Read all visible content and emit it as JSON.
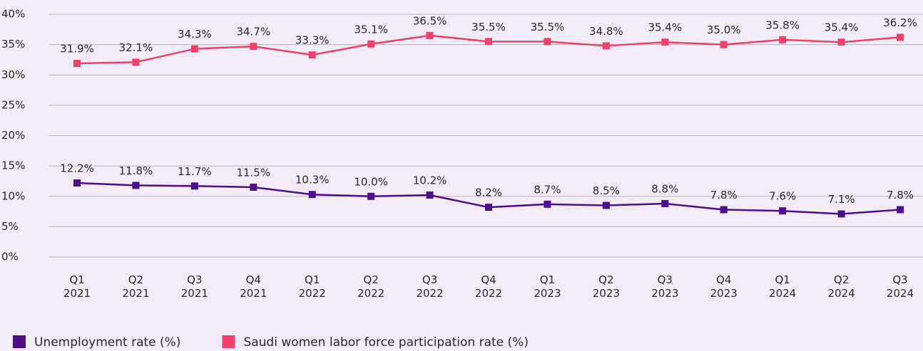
{
  "chart_data": {
    "type": "line",
    "categories": [
      "Q1 2021",
      "Q2 2021",
      "Q3 2021",
      "Q4 2021",
      "Q1 2022",
      "Q2 2022",
      "Q3 2022",
      "Q4 2022",
      "Q1 2023",
      "Q2 2023",
      "Q3 2023",
      "Q4 2023",
      "Q1 2024",
      "Q2 2024",
      "Q3 2024"
    ],
    "series": [
      {
        "name": "Unemployment rate (%)",
        "color": "#4b0f8c",
        "values": [
          12.2,
          11.8,
          11.7,
          11.5,
          10.3,
          10.0,
          10.2,
          8.2,
          8.7,
          8.5,
          8.8,
          7.8,
          7.6,
          7.1,
          7.8
        ],
        "value_labels": [
          "12.2%",
          "11.8%",
          "11.7%",
          "11.5%",
          "10.3%",
          "10.0%",
          "10.2%",
          "8.2%",
          "8.7%",
          "8.5%",
          "8.8%",
          "7.8%",
          "7.6%",
          "7.1%",
          "7.8%"
        ]
      },
      {
        "name": "Saudi women labor force participation rate (%)",
        "color": "#f0416a",
        "values": [
          31.9,
          32.1,
          34.3,
          34.7,
          33.3,
          35.1,
          36.5,
          35.5,
          35.5,
          34.8,
          35.4,
          35.0,
          35.8,
          35.4,
          36.2
        ],
        "value_labels": [
          "31.9%",
          "32.1%",
          "34.3%",
          "34.7%",
          "33.3%",
          "35.1%",
          "36.5%",
          "35.5%",
          "35.5%",
          "34.8%",
          "35.4%",
          "35.0%",
          "35.8%",
          "35.4%",
          "36.2%"
        ]
      }
    ],
    "ylim": [
      0,
      40
    ],
    "yticks": [
      {
        "value": 0,
        "label": "0%"
      },
      {
        "value": 5,
        "label": "5%"
      },
      {
        "value": 10,
        "label": "10%"
      },
      {
        "value": 15,
        "label": "15%"
      },
      {
        "value": 20,
        "label": "20%"
      },
      {
        "value": 25,
        "label": "25%"
      },
      {
        "value": 30,
        "label": "30%"
      },
      {
        "value": 35,
        "label": "35%"
      },
      {
        "value": 40,
        "label": "40%"
      }
    ],
    "grid": true,
    "legend": "bottom"
  }
}
